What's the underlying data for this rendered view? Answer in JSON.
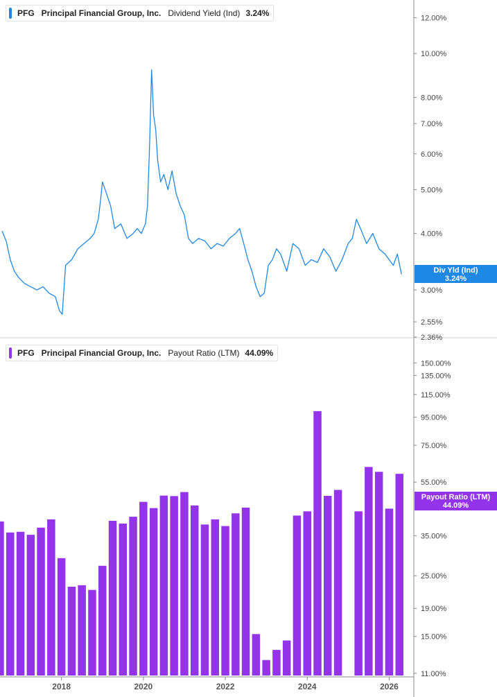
{
  "colors": {
    "yield_line": "#1e88e5",
    "bar": "#9333ea",
    "axis": "#888888",
    "tick_text": "#444444"
  },
  "legends": [
    {
      "ticker": "PFG",
      "company": "Principal Financial Group, Inc.",
      "metric": "Dividend Yield (Ind)",
      "value": "3.24%"
    },
    {
      "ticker": "PFG",
      "company": "Principal Financial Group, Inc.",
      "metric": "Payout Ratio (LTM)",
      "value": "44.09%"
    }
  ],
  "tags": [
    {
      "label": "Div Yld (Ind)",
      "value": "3.24%"
    },
    {
      "label": "Payout Ratio (LTM)",
      "value": "44.09%"
    }
  ],
  "chart_data": [
    {
      "type": "line",
      "scale": "log",
      "ylim": [
        2.36,
        12.5
      ],
      "y_ticks": [
        "12.00%",
        "10.00%",
        "8.00%",
        "7.00%",
        "6.00%",
        "5.00%",
        "4.00%",
        "3.00%",
        "2.55%",
        "2.36%"
      ],
      "y_tick_values": [
        12,
        10,
        8,
        7,
        6,
        5,
        4,
        3,
        2.55,
        2.36
      ],
      "x_range": [
        2016.5,
        2026.5
      ],
      "series": [
        {
          "values_x": [
            2016.55,
            2016.65,
            2016.75,
            2016.85,
            2016.95,
            2017.1,
            2017.25,
            2017.4,
            2017.55,
            2017.7,
            2017.85,
            2017.95,
            2018.02,
            2018.1,
            2018.25,
            2018.4,
            2018.55,
            2018.7,
            2018.8,
            2018.9,
            2018.95,
            2019.0,
            2019.1,
            2019.2,
            2019.3,
            2019.45,
            2019.6,
            2019.75,
            2019.85,
            2019.95,
            2020.05,
            2020.1,
            2020.15,
            2020.2,
            2020.25,
            2020.3,
            2020.35,
            2020.42,
            2020.5,
            2020.6,
            2020.7,
            2020.8,
            2020.9,
            2021.0,
            2021.1,
            2021.2,
            2021.35,
            2021.5,
            2021.65,
            2021.8,
            2021.95,
            2022.1,
            2022.25,
            2022.35,
            2022.45,
            2022.55,
            2022.65,
            2022.75,
            2022.85,
            2022.95,
            2023.05,
            2023.15,
            2023.25,
            2023.35,
            2023.5,
            2023.65,
            2023.8,
            2023.95,
            2024.1,
            2024.25,
            2024.4,
            2024.55,
            2024.7,
            2024.85,
            2025.0,
            2025.1,
            2025.2,
            2025.3,
            2025.45,
            2025.6,
            2025.75,
            2025.9,
            2026.0,
            2026.1,
            2026.2,
            2026.3
          ],
          "values_y": [
            4.05,
            3.85,
            3.5,
            3.3,
            3.2,
            3.1,
            3.05,
            3.0,
            3.05,
            2.95,
            2.9,
            2.7,
            2.65,
            3.4,
            3.5,
            3.7,
            3.8,
            3.9,
            4.0,
            4.3,
            4.7,
            5.2,
            4.9,
            4.6,
            4.1,
            4.2,
            3.9,
            4.0,
            4.1,
            4.0,
            4.2,
            4.6,
            6.2,
            9.2,
            7.3,
            6.8,
            5.8,
            5.2,
            5.4,
            5.0,
            5.5,
            4.9,
            4.6,
            4.4,
            3.9,
            3.8,
            3.9,
            3.85,
            3.7,
            3.8,
            3.75,
            3.9,
            4.0,
            4.1,
            3.8,
            3.5,
            3.3,
            3.05,
            2.9,
            2.95,
            3.4,
            3.5,
            3.7,
            3.6,
            3.3,
            3.8,
            3.7,
            3.4,
            3.5,
            3.45,
            3.7,
            3.55,
            3.3,
            3.5,
            3.8,
            3.9,
            4.3,
            4.1,
            3.8,
            4.0,
            3.7,
            3.6,
            3.5,
            3.4,
            3.6,
            3.25
          ]
        }
      ]
    },
    {
      "type": "bar",
      "scale": "log",
      "ylim": [
        10.8,
        165
      ],
      "y_ticks": [
        "150.00%",
        "135.00%",
        "115.00%",
        "95.00%",
        "75.00%",
        "55.00%",
        "35.00%",
        "25.00%",
        "19.00%",
        "15.00%",
        "11.00%"
      ],
      "y_tick_values": [
        150,
        135,
        115,
        95,
        75,
        55,
        35,
        25,
        19,
        15,
        11
      ],
      "x_range": [
        2016.5,
        2026.5
      ],
      "x_ticks": [
        "2018",
        "2020",
        "2022",
        "2024",
        "2026"
      ],
      "x_tick_values": [
        2018,
        2020,
        2022,
        2024,
        2026
      ],
      "series": [
        {
          "x": [
            2016.5,
            2016.75,
            2017.0,
            2017.25,
            2017.5,
            2017.75,
            2018.0,
            2018.25,
            2018.5,
            2018.75,
            2019.0,
            2019.25,
            2019.5,
            2019.75,
            2020.0,
            2020.25,
            2020.5,
            2020.75,
            2021.0,
            2021.25,
            2021.5,
            2021.75,
            2022.0,
            2022.25,
            2022.5,
            2022.75,
            2023.0,
            2023.25,
            2023.5,
            2023.75,
            2024.0,
            2024.25,
            2024.5,
            2024.75,
            2025.0,
            2025.25,
            2025.5,
            2025.75,
            2026.0,
            2026.25
          ],
          "values": [
            39.5,
            36.0,
            36.2,
            35.3,
            37.5,
            40.2,
            29.0,
            22.8,
            23.1,
            22.2,
            27.2,
            39.7,
            38.8,
            41.1,
            46.6,
            44.2,
            49.1,
            48.9,
            50.6,
            45.2,
            38.5,
            40.2,
            38.0,
            42.3,
            44.4,
            15.3,
            12.3,
            13.4,
            14.5,
            41.5,
            43.0,
            100.0,
            49.0,
            51.5,
            null,
            43.0,
            62.5,
            60.0,
            44.0,
            59.0
          ]
        }
      ]
    }
  ]
}
